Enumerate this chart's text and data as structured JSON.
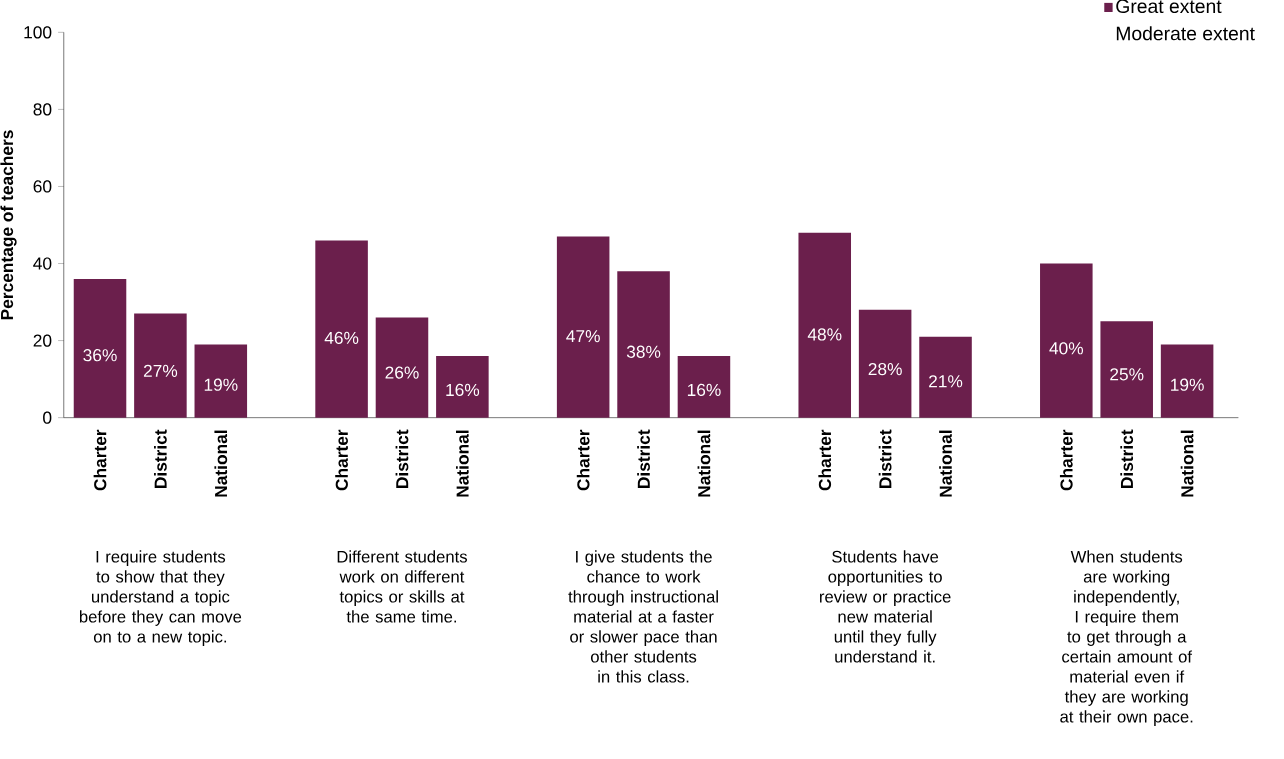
{
  "chart_data": {
    "type": "bar",
    "ylabel": "Percentage of teachers",
    "categories": [
      "Charter",
      "District",
      "National",
      "Charter",
      "District",
      "National",
      "Charter",
      "District",
      "National",
      "Charter",
      "District",
      "National",
      "Charter",
      "District",
      "National"
    ],
    "series": [
      {
        "name": "Great extent",
        "color": "#6b1f4c",
        "values": [
          36,
          27,
          19,
          46,
          26,
          16,
          47,
          38,
          16,
          48,
          28,
          21,
          40,
          25,
          19
        ],
        "value_labels": [
          "36%",
          "27%",
          "19%",
          "46%",
          "26%",
          "16%",
          "47%",
          "38%",
          "16%",
          "48%",
          "28%",
          "21%",
          "40%",
          "25%",
          "19%"
        ]
      },
      {
        "name": "Moderate extent",
        "values": [
          null,
          null,
          null,
          null,
          null,
          null,
          null,
          null,
          null,
          null,
          null,
          null,
          null,
          null,
          null
        ]
      }
    ],
    "ylim": [
      0,
      100
    ],
    "yticks": [
      0,
      20,
      40,
      60,
      80,
      100
    ],
    "grid": false,
    "legend": "top right",
    "annotations": [
      "I require students to show that they understand a topic before they can move on to a new topic.",
      "Different students work on different topics or skills at the same time.",
      "I give students the chance to work through instructional material at a faster or slower pace than other students in this class.",
      "Students have opportunities to review or practice new material until they fully understand it.",
      "When students are working independently, I require them to get through a certain amount of material even if they are working at their own pace."
    ]
  }
}
